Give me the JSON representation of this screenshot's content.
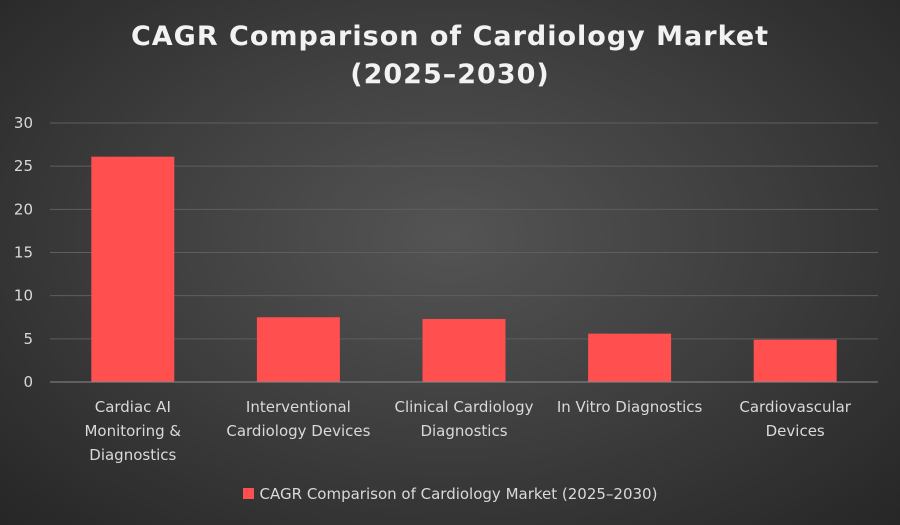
{
  "chart_data": {
    "type": "bar",
    "title_lines": [
      "CAGR Comparison of Cardiology Market",
      "(2025–2030)"
    ],
    "categories": [
      "Cardiac AI\nMonitoring &\nDiagnostics",
      "Interventional\nCardiology Devices",
      "Clinical Cardiology\nDiagnostics",
      "In Vitro Diagnostics",
      "Cardiovascular\nDevices"
    ],
    "series": [
      {
        "name": "CAGR Comparison of Cardiology Market (2025–2030)",
        "values": [
          26.1,
          7.5,
          7.3,
          5.6,
          4.9
        ]
      }
    ],
    "ylim": [
      0,
      30
    ],
    "yticks": [
      "0",
      "5",
      "10",
      "15",
      "20",
      "25",
      "30"
    ],
    "xlabel": "",
    "ylabel": "",
    "grid": true,
    "legend_position": "bottom",
    "colors": {
      "bar": "#ff4f4f",
      "grid": "#5e5e5e",
      "axis": "#8a8a8a",
      "text": "#d9d9d9"
    }
  }
}
